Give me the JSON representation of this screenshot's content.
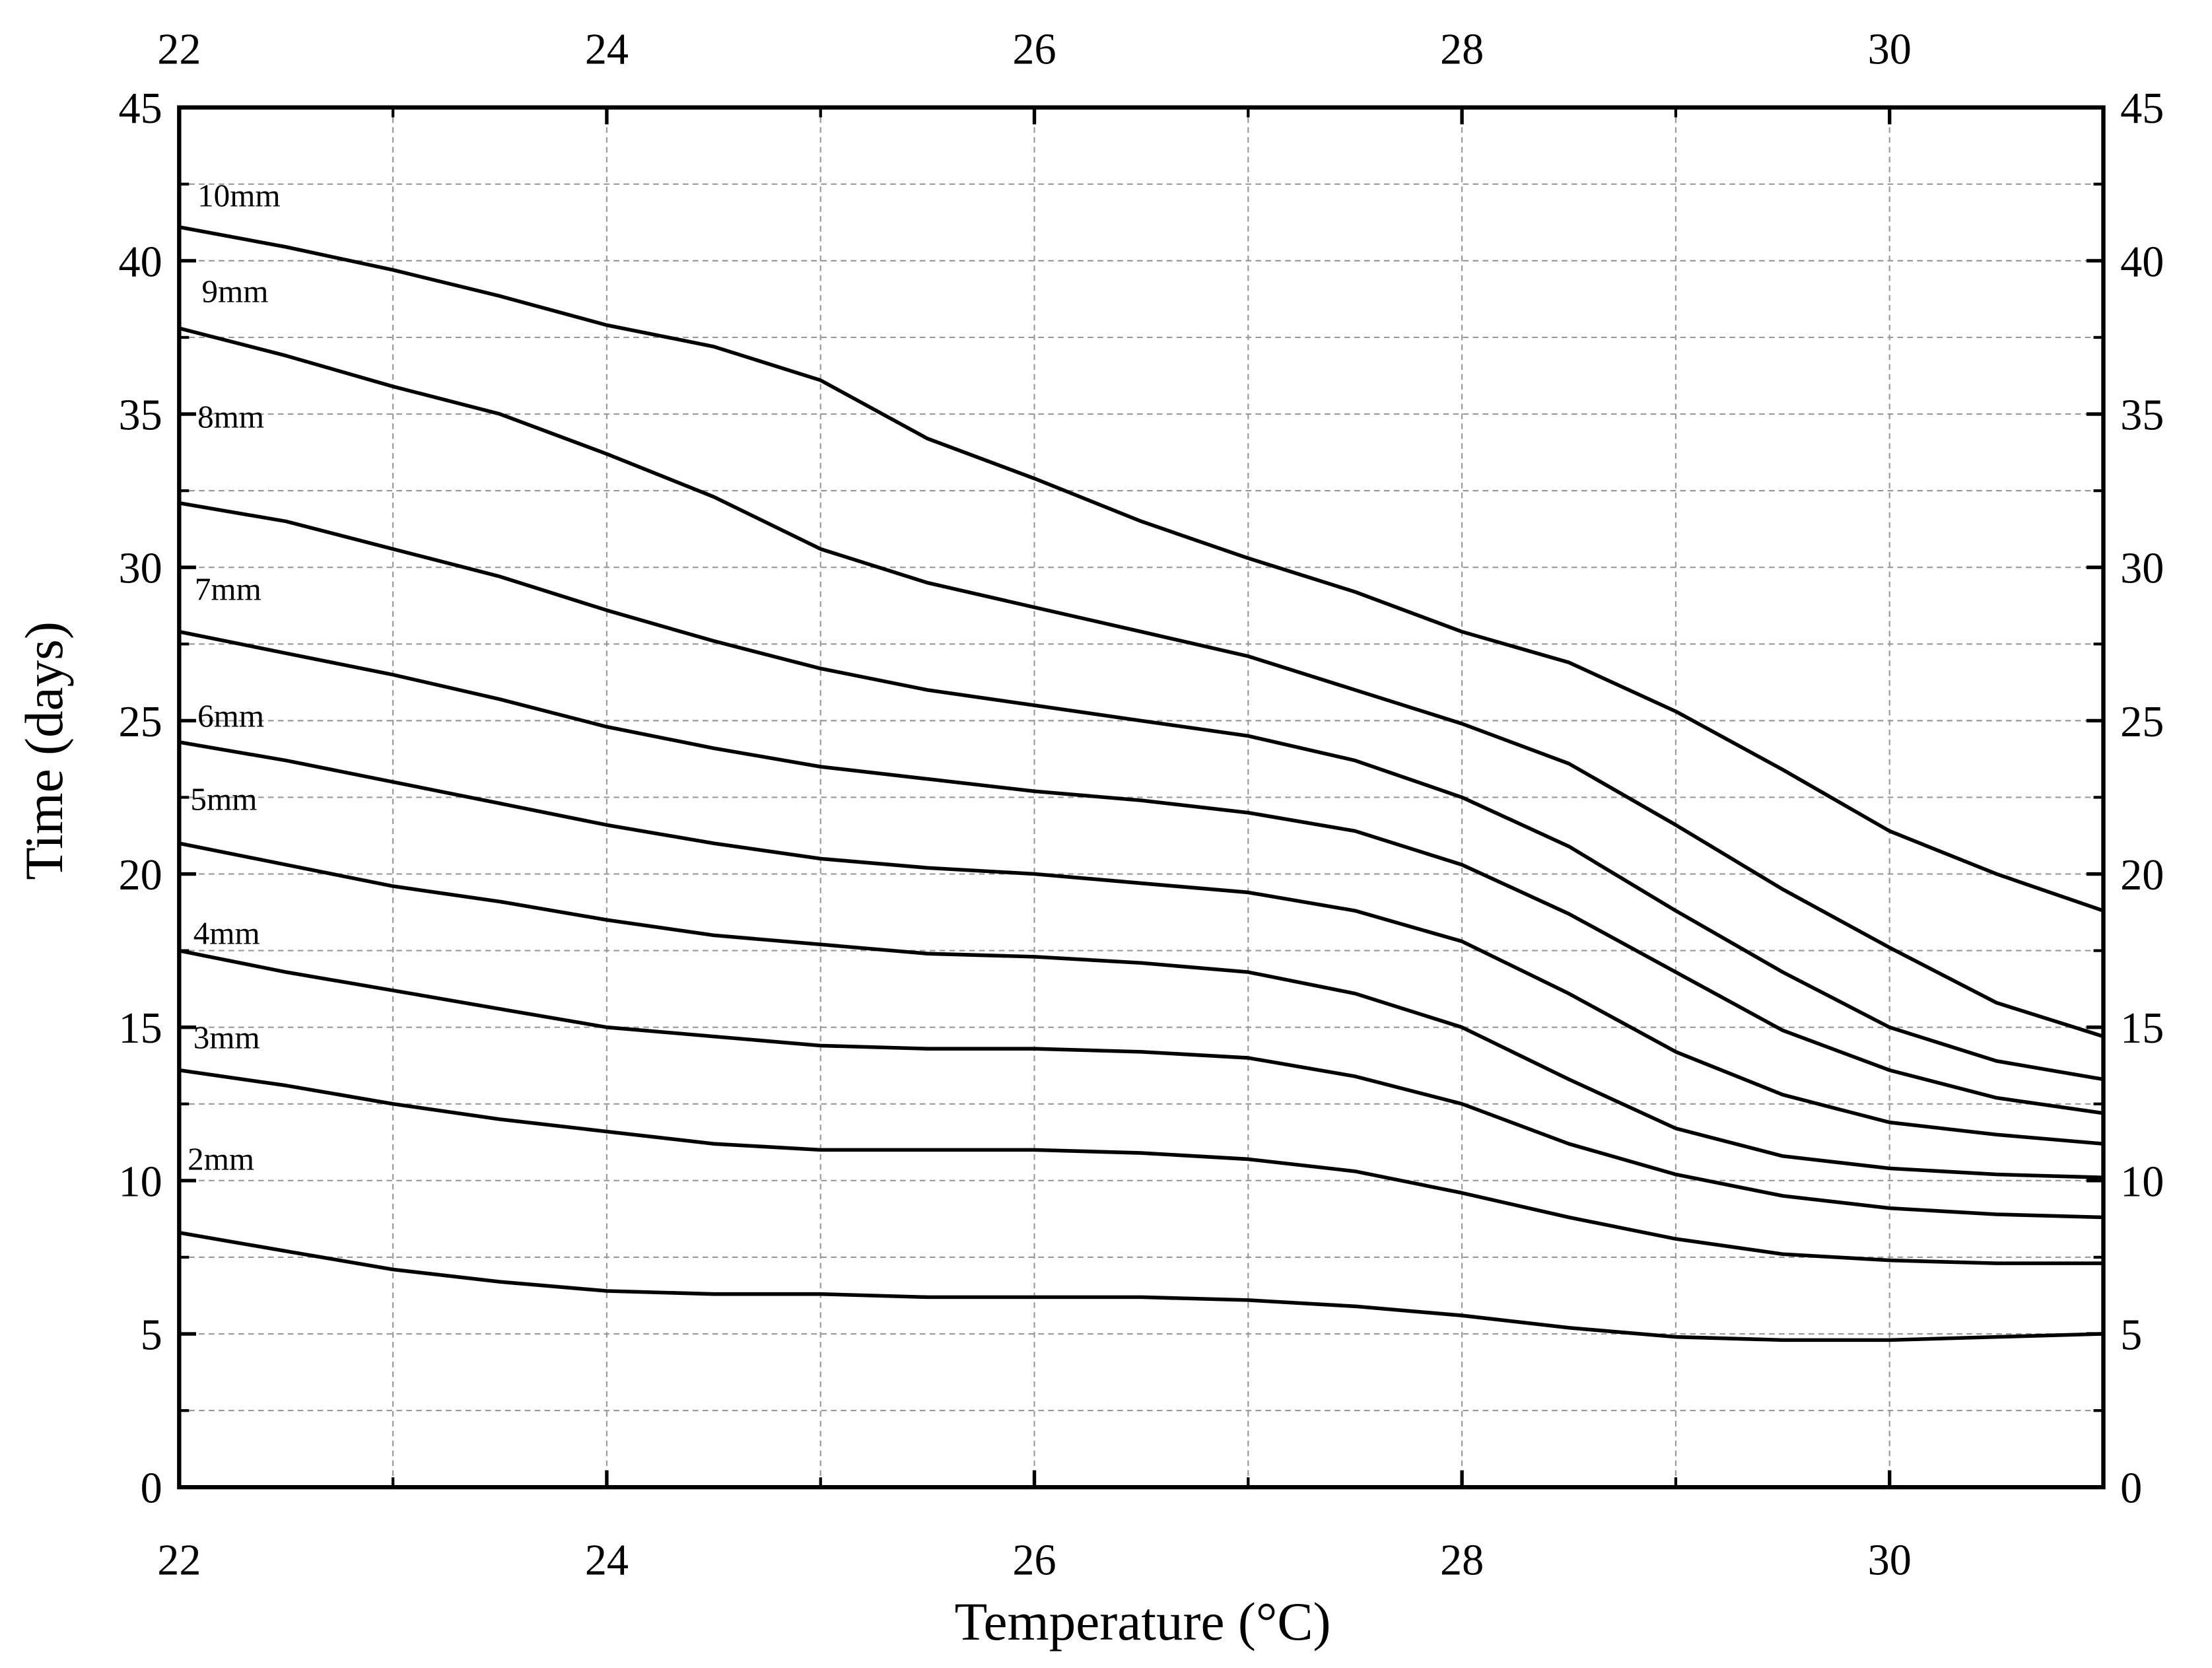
{
  "chart_data": {
    "type": "line",
    "xlabel": "Temperature (°C)",
    "ylabel": "Time (days)",
    "x": [
      22,
      22.5,
      23,
      23.5,
      24,
      24.5,
      25,
      25.5,
      26,
      26.5,
      27,
      27.5,
      28,
      28.5,
      29,
      29.5,
      30,
      30.5,
      31
    ],
    "series": [
      {
        "name": "10mm",
        "color": "#000000",
        "values": [
          41.1,
          40.45,
          39.7,
          38.85,
          37.9,
          37.2,
          36.1,
          34.2,
          32.9,
          31.5,
          30.3,
          29.2,
          27.9,
          26.9,
          25.3,
          23.4,
          21.4,
          20.0,
          18.8
        ]
      },
      {
        "name": "9mm",
        "color": "#000000",
        "values": [
          37.8,
          36.9,
          35.9,
          35.0,
          33.7,
          32.3,
          30.6,
          29.5,
          28.7,
          27.9,
          27.1,
          26.0,
          24.9,
          23.6,
          21.6,
          19.5,
          17.6,
          15.8,
          14.7
        ]
      },
      {
        "name": "8mm",
        "color": "#000000",
        "values": [
          32.1,
          31.5,
          30.6,
          29.7,
          28.6,
          27.6,
          26.7,
          26.0,
          25.5,
          25.0,
          24.5,
          23.7,
          22.5,
          20.9,
          18.8,
          16.8,
          15.0,
          13.9,
          13.3
        ]
      },
      {
        "name": "7mm",
        "color": "#000000",
        "values": [
          27.9,
          27.2,
          26.5,
          25.7,
          24.8,
          24.1,
          23.5,
          23.1,
          22.7,
          22.4,
          22.0,
          21.4,
          20.3,
          18.7,
          16.8,
          14.9,
          13.6,
          12.7,
          12.2
        ]
      },
      {
        "name": "6mm",
        "color": "#000000",
        "values": [
          24.3,
          23.7,
          23.0,
          22.3,
          21.6,
          21.0,
          20.5,
          20.2,
          20.0,
          19.7,
          19.4,
          18.8,
          17.8,
          16.1,
          14.2,
          12.8,
          11.9,
          11.5,
          11.2
        ]
      },
      {
        "name": "5mm",
        "color": "#000000",
        "values": [
          21.0,
          20.3,
          19.6,
          19.1,
          18.5,
          18.0,
          17.7,
          17.4,
          17.3,
          17.1,
          16.8,
          16.1,
          15.0,
          13.3,
          11.7,
          10.8,
          10.4,
          10.2,
          10.1
        ]
      },
      {
        "name": "4mm",
        "color": "#000000",
        "values": [
          17.5,
          16.8,
          16.2,
          15.6,
          15.0,
          14.7,
          14.4,
          14.3,
          14.3,
          14.2,
          14.0,
          13.4,
          12.5,
          11.2,
          10.2,
          9.5,
          9.1,
          8.9,
          8.8
        ]
      },
      {
        "name": "3mm",
        "color": "#000000",
        "values": [
          13.6,
          13.1,
          12.5,
          12.0,
          11.6,
          11.2,
          11.0,
          11.0,
          11.0,
          10.9,
          10.7,
          10.3,
          9.6,
          8.8,
          8.1,
          7.6,
          7.4,
          7.3,
          7.3
        ]
      },
      {
        "name": "2mm",
        "color": "#000000",
        "values": [
          8.3,
          7.7,
          7.1,
          6.7,
          6.4,
          6.3,
          6.3,
          6.2,
          6.2,
          6.2,
          6.1,
          5.9,
          5.6,
          5.2,
          4.9,
          4.8,
          4.8,
          4.9,
          5.0
        ]
      }
    ],
    "xlim": [
      22,
      31
    ],
    "ylim": [
      0,
      45
    ],
    "xticks": [
      22,
      24,
      26,
      28,
      30
    ],
    "yticks": [
      0,
      5,
      10,
      15,
      20,
      25,
      30,
      35,
      40,
      45
    ],
    "xminor_ticks": [
      23,
      25,
      27,
      29,
      31
    ],
    "yminor_ticks": [
      2.5,
      7.5,
      12.5,
      17.5,
      22.5,
      27.5,
      32.5,
      37.5,
      42.5
    ],
    "grid": true
  }
}
